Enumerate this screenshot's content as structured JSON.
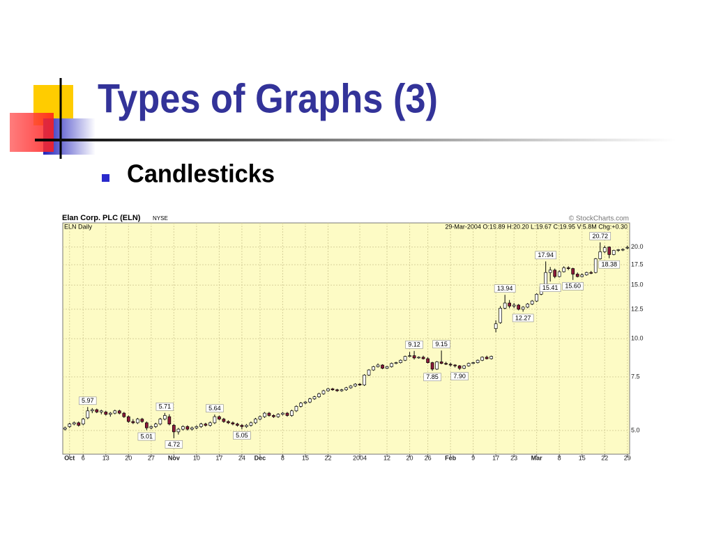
{
  "slide": {
    "title": "Types of Graphs (3)",
    "bullet": "Candlesticks"
  },
  "chart_data": {
    "type": "candlestick",
    "title": "Elan Corp. PLC (ELN)",
    "exchange": "NYSE",
    "subtitle": "ELN Daily",
    "source": "© StockCharts.com",
    "info": "29-Mar-2004 O:19.89 H:20.20 L:19.67 C:19.95 V:5.8M Chg:+0.30",
    "log_scale": true,
    "grid": true,
    "up_color": "#ffffff",
    "down_color": "#8b1a3a",
    "xlim": [
      -0.5,
      124.5
    ],
    "ylim": [
      4.18,
      24.0
    ],
    "yticks": [
      {
        "value": 5,
        "label": "5.0"
      },
      7.5,
      {
        "value": 10,
        "label": "10.0"
      },
      12.5,
      {
        "value": 15,
        "label": "15.0"
      },
      17.5,
      {
        "value": 20,
        "label": "20.0"
      }
    ],
    "xticks": [
      {
        "value": 1,
        "label": "Oct"
      },
      {
        "value": 4,
        "label": "6"
      },
      {
        "value": 9,
        "label": "13"
      },
      {
        "value": 14,
        "label": "20"
      },
      {
        "value": 19,
        "label": "27"
      },
      {
        "value": 24,
        "label": "Nov"
      },
      {
        "value": 29,
        "label": "10"
      },
      {
        "value": 34,
        "label": "17"
      },
      {
        "value": 39,
        "label": "24"
      },
      {
        "value": 43,
        "label": "Dec"
      },
      {
        "value": 48,
        "label": "8"
      },
      {
        "value": 53,
        "label": "15"
      },
      {
        "value": 58,
        "label": "22"
      },
      {
        "value": 65,
        "label": "2004"
      },
      {
        "value": 71,
        "label": "12"
      },
      {
        "value": 76,
        "label": "20"
      },
      {
        "value": 80,
        "label": "26"
      },
      {
        "value": 85,
        "label": "Feb"
      },
      {
        "value": 90,
        "label": "9"
      },
      {
        "value": 95,
        "label": "17"
      },
      {
        "value": 99,
        "label": "23"
      },
      {
        "value": 104,
        "label": "Mar"
      },
      {
        "value": 109,
        "label": "8"
      },
      {
        "value": 114,
        "label": "15"
      },
      {
        "value": 119,
        "label": "22"
      },
      {
        "value": 124,
        "label": "29"
      }
    ],
    "ohlc": [
      [
        5.05,
        5.15,
        5.0,
        5.1
      ],
      [
        5.15,
        5.3,
        5.1,
        5.25
      ],
      [
        5.25,
        5.35,
        5.2,
        5.3
      ],
      [
        5.3,
        5.35,
        5.15,
        5.2
      ],
      [
        5.25,
        5.5,
        5.2,
        5.45
      ],
      [
        5.5,
        5.97,
        5.45,
        5.8
      ],
      [
        5.8,
        5.92,
        5.7,
        5.85
      ],
      [
        5.85,
        5.9,
        5.7,
        5.75
      ],
      [
        5.75,
        5.85,
        5.65,
        5.8
      ],
      [
        5.75,
        5.8,
        5.6,
        5.65
      ],
      [
        5.65,
        5.75,
        5.55,
        5.7
      ],
      [
        5.7,
        5.85,
        5.65,
        5.8
      ],
      [
        5.8,
        5.85,
        5.65,
        5.7
      ],
      [
        5.7,
        5.75,
        5.5,
        5.55
      ],
      [
        5.55,
        5.6,
        5.3,
        5.35
      ],
      [
        5.35,
        5.45,
        5.25,
        5.3
      ],
      [
        5.3,
        5.5,
        5.25,
        5.45
      ],
      [
        5.45,
        5.5,
        5.3,
        5.35
      ],
      [
        5.3,
        5.35,
        5.01,
        5.1
      ],
      [
        5.1,
        5.2,
        5.05,
        5.15
      ],
      [
        5.15,
        5.3,
        5.1,
        5.25
      ],
      [
        5.25,
        5.5,
        5.2,
        5.45
      ],
      [
        5.45,
        5.71,
        5.4,
        5.6
      ],
      [
        5.55,
        5.65,
        5.2,
        5.25
      ],
      [
        5.2,
        5.25,
        4.72,
        4.95
      ],
      [
        4.95,
        5.1,
        4.85,
        5.05
      ],
      [
        5.05,
        5.2,
        5.0,
        5.15
      ],
      [
        5.15,
        5.2,
        5.0,
        5.05
      ],
      [
        5.05,
        5.15,
        5.0,
        5.1
      ],
      [
        5.1,
        5.2,
        5.05,
        5.15
      ],
      [
        5.15,
        5.3,
        5.1,
        5.25
      ],
      [
        5.25,
        5.3,
        5.15,
        5.2
      ],
      [
        5.2,
        5.35,
        5.15,
        5.3
      ],
      [
        5.3,
        5.64,
        5.25,
        5.55
      ],
      [
        5.55,
        5.6,
        5.4,
        5.45
      ],
      [
        5.45,
        5.5,
        5.3,
        5.35
      ],
      [
        5.35,
        5.4,
        5.25,
        5.3
      ],
      [
        5.3,
        5.35,
        5.2,
        5.25
      ],
      [
        5.25,
        5.3,
        5.15,
        5.2
      ],
      [
        5.2,
        5.25,
        5.05,
        5.15
      ],
      [
        5.15,
        5.25,
        5.1,
        5.2
      ],
      [
        5.2,
        5.35,
        5.15,
        5.3
      ],
      [
        5.3,
        5.5,
        5.25,
        5.45
      ],
      [
        5.45,
        5.6,
        5.4,
        5.55
      ],
      [
        5.55,
        5.75,
        5.5,
        5.7
      ],
      [
        5.7,
        5.75,
        5.55,
        5.6
      ],
      [
        5.6,
        5.65,
        5.5,
        5.55
      ],
      [
        5.55,
        5.7,
        5.5,
        5.65
      ],
      [
        5.65,
        5.75,
        5.6,
        5.7
      ],
      [
        5.7,
        5.75,
        5.55,
        5.6
      ],
      [
        5.6,
        5.85,
        5.55,
        5.8
      ],
      [
        5.8,
        6.05,
        5.75,
        6.0
      ],
      [
        6.0,
        6.2,
        5.95,
        6.15
      ],
      [
        6.15,
        6.25,
        6.1,
        6.2
      ],
      [
        6.2,
        6.4,
        6.15,
        6.35
      ],
      [
        6.35,
        6.5,
        6.3,
        6.45
      ],
      [
        6.45,
        6.65,
        6.4,
        6.6
      ],
      [
        6.6,
        6.8,
        6.55,
        6.75
      ],
      [
        6.75,
        6.9,
        6.7,
        6.85
      ],
      [
        6.85,
        6.9,
        6.75,
        6.8
      ],
      [
        6.8,
        6.85,
        6.7,
        6.75
      ],
      [
        6.75,
        6.85,
        6.7,
        6.8
      ],
      [
        6.8,
        6.95,
        6.75,
        6.9
      ],
      [
        6.9,
        7.05,
        6.85,
        7.0
      ],
      [
        7.0,
        7.15,
        6.95,
        7.1
      ],
      [
        7.1,
        7.15,
        7.0,
        7.05
      ],
      [
        7.05,
        7.65,
        7.0,
        7.6
      ],
      [
        7.6,
        7.95,
        7.55,
        7.9
      ],
      [
        7.9,
        8.15,
        7.85,
        8.1
      ],
      [
        8.1,
        8.3,
        8.05,
        8.2
      ],
      [
        8.2,
        8.25,
        7.95,
        8.0
      ],
      [
        8.0,
        8.15,
        7.95,
        8.1
      ],
      [
        8.1,
        8.35,
        8.05,
        8.3
      ],
      [
        8.3,
        8.4,
        8.25,
        8.35
      ],
      [
        8.35,
        8.55,
        8.3,
        8.5
      ],
      [
        8.5,
        8.8,
        8.45,
        8.75
      ],
      [
        8.75,
        9.05,
        8.7,
        8.8
      ],
      [
        8.8,
        9.12,
        8.55,
        8.65
      ],
      [
        8.65,
        8.75,
        8.6,
        8.7
      ],
      [
        8.7,
        8.8,
        8.55,
        8.6
      ],
      [
        8.6,
        8.7,
        8.3,
        8.35
      ],
      [
        8.35,
        8.4,
        7.85,
        7.95
      ],
      [
        7.95,
        8.45,
        7.9,
        8.4
      ],
      [
        8.4,
        9.15,
        8.25,
        8.3
      ],
      [
        8.3,
        8.4,
        8.2,
        8.25
      ],
      [
        8.25,
        8.35,
        8.1,
        8.2
      ],
      [
        8.2,
        8.25,
        8.05,
        8.15
      ],
      [
        8.15,
        8.2,
        7.9,
        8.0
      ],
      [
        8.0,
        8.2,
        7.95,
        8.15
      ],
      [
        8.15,
        8.35,
        8.1,
        8.3
      ],
      [
        8.3,
        8.4,
        8.25,
        8.35
      ],
      [
        8.35,
        8.55,
        8.3,
        8.5
      ],
      [
        8.5,
        8.75,
        8.45,
        8.7
      ],
      [
        8.7,
        8.8,
        8.55,
        8.6
      ],
      [
        8.6,
        8.8,
        8.55,
        8.75
      ],
      [
        10.8,
        11.5,
        10.5,
        11.2
      ],
      [
        11.3,
        12.8,
        11.2,
        12.6
      ],
      [
        12.6,
        13.94,
        12.5,
        13.1
      ],
      [
        13.1,
        13.4,
        12.6,
        12.8
      ],
      [
        12.8,
        13.1,
        12.6,
        12.9
      ],
      [
        12.9,
        13.0,
        12.4,
        12.5
      ],
      [
        12.5,
        12.8,
        12.27,
        12.7
      ],
      [
        12.7,
        13.1,
        12.6,
        13.0
      ],
      [
        13.0,
        13.4,
        12.9,
        13.3
      ],
      [
        13.3,
        14.1,
        13.2,
        14.0
      ],
      [
        14.0,
        15.0,
        13.9,
        14.8
      ],
      [
        14.8,
        17.94,
        14.7,
        16.5
      ],
      [
        16.5,
        17.2,
        15.41,
        16.8
      ],
      [
        16.8,
        17.0,
        15.8,
        16.0
      ],
      [
        16.0,
        16.8,
        15.9,
        16.6
      ],
      [
        16.6,
        17.3,
        16.5,
        17.1
      ],
      [
        17.1,
        17.3,
        16.8,
        17.0
      ],
      [
        17.0,
        17.1,
        15.6,
        16.3
      ],
      [
        16.3,
        16.5,
        15.9,
        16.0
      ],
      [
        16.0,
        16.4,
        15.9,
        16.2
      ],
      [
        16.2,
        16.6,
        16.1,
        16.5
      ],
      [
        16.5,
        16.7,
        16.3,
        16.4
      ],
      [
        16.5,
        18.4,
        16.4,
        18.3
      ],
      [
        18.3,
        20.72,
        18.2,
        19.3
      ],
      [
        19.3,
        20.2,
        19.1,
        19.9
      ],
      [
        20.0,
        20.1,
        18.38,
        18.9
      ],
      [
        18.9,
        19.6,
        18.8,
        19.5
      ],
      [
        19.5,
        19.7,
        19.3,
        19.6
      ],
      [
        19.6,
        19.8,
        19.4,
        19.65
      ],
      [
        19.89,
        20.2,
        19.67,
        19.95
      ]
    ],
    "annotations": [
      {
        "x": 5,
        "side": "high",
        "label": "5.97"
      },
      {
        "x": 18,
        "side": "low",
        "label": "5.01"
      },
      {
        "x": 22,
        "side": "high",
        "label": "5.71"
      },
      {
        "x": 24,
        "side": "low",
        "label": "4.72"
      },
      {
        "x": 33,
        "side": "high",
        "label": "5.64"
      },
      {
        "x": 39,
        "side": "low",
        "label": "5.05"
      },
      {
        "x": 77,
        "side": "high",
        "label": "9.12"
      },
      {
        "x": 81,
        "side": "low",
        "label": "7.85"
      },
      {
        "x": 83,
        "side": "high",
        "label": "9.15"
      },
      {
        "x": 87,
        "side": "low",
        "label": "7.90"
      },
      {
        "x": 97,
        "side": "high",
        "label": "13.94"
      },
      {
        "x": 101,
        "side": "low",
        "label": "12.27"
      },
      {
        "x": 106,
        "side": "high",
        "label": "17.94"
      },
      {
        "x": 107,
        "side": "low",
        "label": "15.41"
      },
      {
        "x": 112,
        "side": "low",
        "label": "15.60"
      },
      {
        "x": 118,
        "side": "high",
        "label": "20.72"
      },
      {
        "x": 120,
        "side": "low",
        "label": "18.38"
      }
    ]
  }
}
